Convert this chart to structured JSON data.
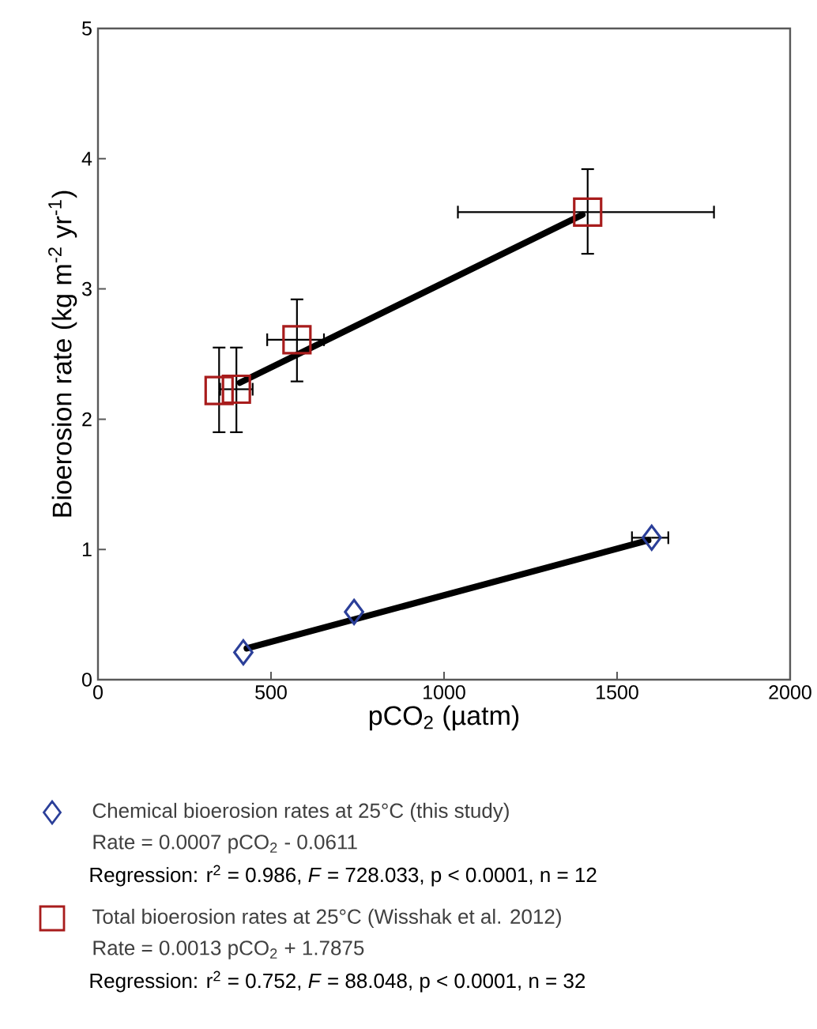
{
  "chart_data": {
    "type": "scatter",
    "xlabel": "pCO$_{2}$ (µatm)",
    "ylabel": "Bioerosion rate (kg m$^{-2}$ yr$^{-1}$)",
    "xlim": [
      0,
      2000
    ],
    "xticks": [
      0,
      500,
      1000,
      1500,
      2000
    ],
    "ylim": [
      0,
      5
    ],
    "yticks": [
      0,
      1,
      2,
      3,
      4,
      5
    ],
    "legend": "bottom",
    "series": [
      {
        "type": "line",
        "color": "#000000",
        "marker": "none",
        "x": [
          430,
          1590
        ],
        "values": [
          0.24,
          1.07
        ]
      },
      {
        "type": "line",
        "color": "#000000",
        "marker": "none",
        "x": [
          410,
          1400
        ],
        "values": [
          2.28,
          3.57
        ]
      },
      {
        "name": "Chemical bioerosion rates at 25°C (this study)",
        "color": "#2b3f99",
        "marker": "diamond",
        "x": [
          420,
          740,
          1600
        ],
        "values": [
          0.21,
          0.52,
          1.09
        ],
        "xerrors": [
          null,
          null,
          [
            1543,
            1648
          ]
        ]
      },
      {
        "name": "Total bioerosion rates at 25°C (Wisshak et al. 2012)",
        "color": "#a81c1c",
        "marker": "square",
        "x": [
          350,
          400,
          575,
          1415
        ],
        "values": [
          2.22,
          2.23,
          2.61,
          3.59
        ],
        "errors": [
          [
            1.9,
            2.55
          ],
          [
            1.9,
            2.55
          ],
          [
            2.29,
            2.92
          ],
          [
            3.27,
            3.92
          ]
        ],
        "xerrors": [
          null,
          [
            353,
            447
          ],
          [
            489,
            653
          ],
          [
            1040,
            1780
          ]
        ]
      }
    ],
    "annotations": [
      "Rate = 0.0007 pCO$_{2}$ - 0.0611",
      "Regression: r$^{2}$ = 0.986, *F* = 728.033, p < 0.0001, n = 12",
      "Rate = 0.0013 pCO$_{2}$ + 1.7875",
      "Regression: r$^{2}$ = 0.752, *F* = 88.048, p < 0.0001, n = 32"
    ]
  }
}
